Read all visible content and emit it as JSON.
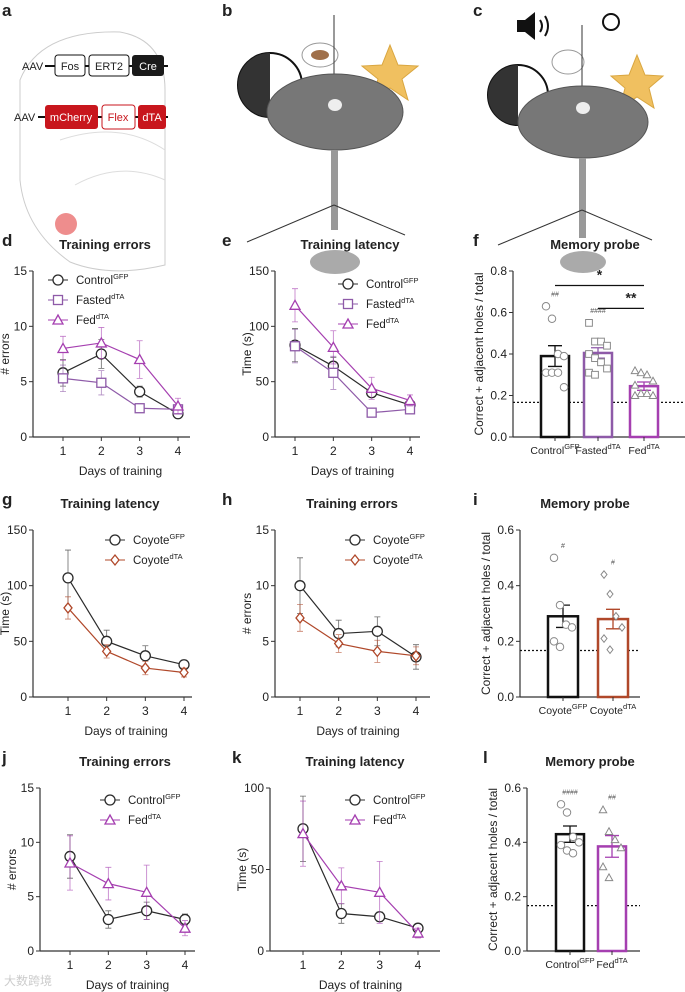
{
  "panel_a": {
    "letter": "a",
    "row1": [
      "AAV",
      "Fos",
      "ERT2",
      "Cre"
    ],
    "row2": [
      "AAV",
      "mCherry",
      "Flex",
      "dTA"
    ]
  },
  "panel_b": {
    "letter": "b"
  },
  "panel_c": {
    "letter": "c"
  },
  "watermark": "大数跨境",
  "colors": {
    "control": "#2b2b2b",
    "fasted": "#8e5aa8",
    "fed": "#a53fb0",
    "coyote_dta": "#b0482a"
  },
  "chart_data": [
    {
      "panel": "d",
      "type": "line",
      "title": "Training errors",
      "xlabel": "Days of training",
      "ylabel": "# errors",
      "ylim": [
        0,
        15
      ],
      "yticks": [
        "0",
        "5",
        "10",
        "15"
      ],
      "x": [
        1,
        2,
        3,
        4
      ],
      "xticks": [
        "1",
        "2",
        "3",
        "4"
      ],
      "series": [
        {
          "name": "Control",
          "sup": "GFP",
          "color": "#2b2b2b",
          "marker": "circle",
          "values": [
            5.8,
            7.5,
            4.1,
            2.1
          ],
          "err": [
            1.2,
            1.3,
            0.5,
            0.4
          ]
        },
        {
          "name": "Fasted",
          "sup": "dTA",
          "color": "#8e5aa8",
          "marker": "square",
          "values": [
            5.3,
            4.9,
            2.6,
            2.5
          ],
          "err": [
            1.2,
            1.1,
            0.4,
            0.3
          ]
        },
        {
          "name": "Fed",
          "sup": "dTA",
          "color": "#a53fb0",
          "marker": "triangle",
          "values": [
            8.0,
            8.5,
            7.0,
            2.8
          ],
          "err": [
            1.1,
            1.4,
            1.7,
            0.7
          ]
        }
      ]
    },
    {
      "panel": "e",
      "type": "line",
      "title": "Training latency",
      "xlabel": "Days of training",
      "ylabel": "Time (s)",
      "ylim": [
        0,
        150
      ],
      "yticks": [
        "0",
        "50",
        "100",
        "150"
      ],
      "x": [
        1,
        2,
        3,
        4
      ],
      "xticks": [
        "1",
        "2",
        "3",
        "4"
      ],
      "series": [
        {
          "name": "Control",
          "sup": "GFP",
          "color": "#2b2b2b",
          "marker": "circle",
          "values": [
            83,
            64,
            40,
            29
          ],
          "err": [
            15,
            8,
            4,
            4
          ]
        },
        {
          "name": "Fasted",
          "sup": "dTA",
          "color": "#8e5aa8",
          "marker": "square",
          "values": [
            82,
            58,
            22,
            25
          ],
          "err": [
            15,
            15,
            3,
            3
          ]
        },
        {
          "name": "Fed",
          "sup": "dTA",
          "color": "#a53fb0",
          "marker": "triangle",
          "values": [
            119,
            81,
            44,
            33
          ],
          "err": [
            15,
            15,
            10,
            5
          ]
        }
      ]
    },
    {
      "panel": "f",
      "type": "bar",
      "title": "Memory probe",
      "ylabel": "Correct + adjacent holes / total",
      "ylim": [
        0,
        0.8
      ],
      "yticks": [
        "0.0",
        "0.2",
        "0.4",
        "0.6",
        "0.8"
      ],
      "chance": 0.167,
      "bars": [
        {
          "name": "Control",
          "sup": "GFP",
          "color": "#111111",
          "marker": "circle",
          "value": 0.39,
          "sem": 0.05,
          "points": [
            0.63,
            0.57,
            0.4,
            0.39,
            0.31,
            0.31,
            0.31,
            0.24
          ],
          "mark": "##"
        },
        {
          "name": "Fasted",
          "sup": "dTA",
          "color": "#8e5aa8",
          "marker": "square",
          "value": 0.405,
          "sem": 0.025,
          "points": [
            0.55,
            0.46,
            0.46,
            0.44,
            0.4,
            0.38,
            0.36,
            0.33,
            0.31,
            0.3
          ],
          "mark": "####"
        },
        {
          "name": "Fed",
          "sup": "dTA",
          "color": "#a53fb0",
          "marker": "triangle",
          "value": 0.245,
          "sem": 0.02,
          "points": [
            0.32,
            0.31,
            0.3,
            0.27,
            0.25,
            0.21,
            0.21,
            0.2,
            0.2
          ],
          "mark": ""
        }
      ],
      "significance": [
        {
          "from": 0,
          "to": 2,
          "label": "*",
          "y": 0.73
        },
        {
          "from": 1,
          "to": 2,
          "label": "**",
          "y": 0.62
        }
      ]
    },
    {
      "panel": "g",
      "type": "line",
      "title": "Training latency",
      "xlabel": "Days of training",
      "ylabel": "Time (s)",
      "ylim": [
        0,
        150
      ],
      "yticks": [
        "0",
        "50",
        "100",
        "150"
      ],
      "x": [
        1,
        2,
        3,
        4
      ],
      "xticks": [
        "1",
        "2",
        "3",
        "4"
      ],
      "series": [
        {
          "name": "Coyote",
          "sup": "GFP",
          "color": "#2b2b2b",
          "marker": "circle",
          "values": [
            107,
            50,
            37,
            29
          ],
          "err": [
            25,
            10,
            9,
            4
          ]
        },
        {
          "name": "Coyote",
          "sup": "dTA",
          "color": "#b0482a",
          "marker": "diamond",
          "values": [
            80,
            41,
            26,
            22
          ],
          "err": [
            10,
            6,
            6,
            4
          ]
        }
      ]
    },
    {
      "panel": "h",
      "type": "line",
      "title": "Training errors",
      "xlabel": "Days of training",
      "ylabel": "# errors",
      "ylim": [
        0,
        15
      ],
      "yticks": [
        "0",
        "5",
        "10",
        "15"
      ],
      "x": [
        1,
        2,
        3,
        4
      ],
      "xticks": [
        "1",
        "2",
        "3",
        "4"
      ],
      "series": [
        {
          "name": "Coyote",
          "sup": "GFP",
          "color": "#2b2b2b",
          "marker": "circle",
          "values": [
            10,
            5.7,
            5.9,
            3.6
          ],
          "err": [
            2.5,
            1.2,
            1.3,
            1.1
          ]
        },
        {
          "name": "Coyote",
          "sup": "dTA",
          "color": "#b0482a",
          "marker": "diamond",
          "values": [
            7.1,
            4.8,
            4.1,
            3.7
          ],
          "err": [
            1.2,
            0.8,
            1.0,
            0.8
          ]
        }
      ]
    },
    {
      "panel": "i",
      "type": "bar",
      "title": "Memory probe",
      "ylabel": "Correct + adjacent holes / total",
      "ylim": [
        0,
        0.6
      ],
      "yticks": [
        "0.0",
        "0.2",
        "0.4",
        "0.6"
      ],
      "chance": 0.167,
      "bars": [
        {
          "name": "Coyote",
          "sup": "GFP",
          "color": "#111111",
          "marker": "circle",
          "value": 0.29,
          "sem": 0.04,
          "points": [
            0.5,
            0.33,
            0.26,
            0.25,
            0.2,
            0.18
          ],
          "mark": "#"
        },
        {
          "name": "Coyote",
          "sup": "dTA",
          "color": "#b0482a",
          "marker": "diamond",
          "value": 0.28,
          "sem": 0.035,
          "points": [
            0.44,
            0.37,
            0.29,
            0.25,
            0.21,
            0.17
          ],
          "mark": "#"
        }
      ],
      "significance": []
    },
    {
      "panel": "j",
      "type": "line",
      "title": "Training errors",
      "xlabel": "Days of training",
      "ylabel": "# errors",
      "ylim": [
        0,
        15
      ],
      "yticks": [
        "0",
        "5",
        "10",
        "15"
      ],
      "x": [
        1,
        2,
        3,
        4
      ],
      "xticks": [
        "1",
        "2",
        "3",
        "4"
      ],
      "series": [
        {
          "name": "Control",
          "sup": "GFP",
          "color": "#2b2b2b",
          "marker": "circle",
          "values": [
            8.7,
            2.9,
            3.7,
            2.9
          ],
          "err": [
            2.0,
            0.8,
            0.8,
            0.5
          ]
        },
        {
          "name": "Fed",
          "sup": "dTA",
          "color": "#a53fb0",
          "marker": "triangle",
          "values": [
            8.1,
            6.2,
            5.4,
            2.1
          ],
          "err": [
            2.5,
            1.5,
            2.5,
            0.7
          ]
        }
      ]
    },
    {
      "panel": "k",
      "type": "line",
      "title": "Training latency",
      "xlabel": "Days of training",
      "ylabel": "Time (s)",
      "ylim": [
        0,
        100
      ],
      "yticks": [
        "0",
        "50",
        "100"
      ],
      "x": [
        1,
        2,
        3,
        4
      ],
      "xticks": [
        "1",
        "2",
        "3",
        "4"
      ],
      "series": [
        {
          "name": "Control",
          "sup": "GFP",
          "color": "#2b2b2b",
          "marker": "circle",
          "values": [
            75,
            23,
            21,
            14
          ],
          "err": [
            20,
            6,
            3,
            2
          ]
        },
        {
          "name": "Fed",
          "sup": "dTA",
          "color": "#a53fb0",
          "marker": "triangle",
          "values": [
            72,
            40,
            36,
            11
          ],
          "err": [
            20,
            11,
            19,
            3
          ]
        }
      ]
    },
    {
      "panel": "l",
      "type": "bar",
      "title": "Memory probe",
      "ylabel": "Correct + adjacent holes / total",
      "ylim": [
        0,
        0.6
      ],
      "yticks": [
        "0.0",
        "0.2",
        "0.4",
        "0.6"
      ],
      "chance": 0.167,
      "bars": [
        {
          "name": "Control",
          "sup": "GFP",
          "color": "#111111",
          "marker": "circle",
          "value": 0.43,
          "sem": 0.03,
          "points": [
            0.54,
            0.51,
            0.42,
            0.4,
            0.39,
            0.37,
            0.36
          ],
          "mark": "####"
        },
        {
          "name": "Fed",
          "sup": "dTA",
          "color": "#a53fb0",
          "marker": "triangle",
          "value": 0.385,
          "sem": 0.04,
          "points": [
            0.52,
            0.44,
            0.41,
            0.38,
            0.31,
            0.27
          ],
          "mark": "##"
        }
      ],
      "significance": []
    }
  ]
}
